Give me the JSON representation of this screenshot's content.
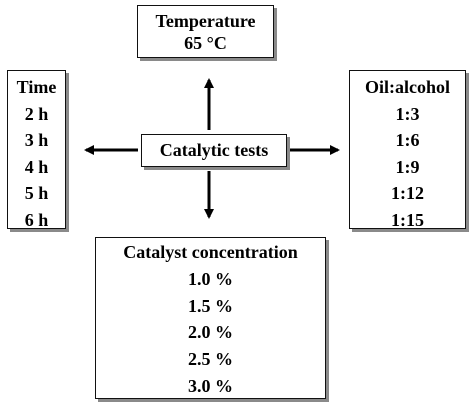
{
  "diagram": {
    "center": {
      "label": "Catalytic tests"
    },
    "temperature": {
      "title": "Temperature",
      "values": [
        "65 °C"
      ]
    },
    "time": {
      "title": "Time",
      "values": [
        "2 h",
        "3 h",
        "4 h",
        "5 h",
        "6 h"
      ]
    },
    "ratio": {
      "title": "Oil:alcohol",
      "values": [
        "1:3",
        "1:6",
        "1:9",
        "1:12",
        "1:15"
      ]
    },
    "concentration": {
      "title": "Catalyst concentration",
      "values": [
        "1.0 %",
        "1.5 %",
        "2.0 %",
        "2.5 %",
        "3.0 %"
      ]
    },
    "colors": {
      "text": "#000000",
      "border": "#111111",
      "shadow": "#8a8a8a",
      "background": "#ffffff"
    }
  }
}
